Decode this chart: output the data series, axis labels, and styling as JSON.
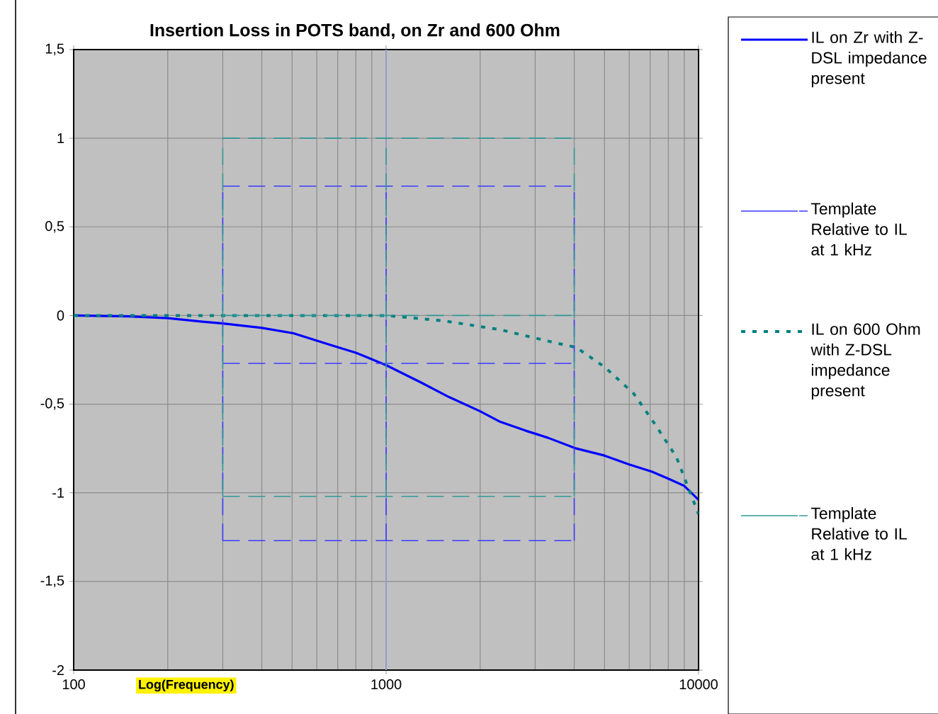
{
  "chart_data": {
    "type": "line",
    "title": "Insertion Loss in POTS band, on Zr and 600 Ohm",
    "xlabel": "Log(Frequency)",
    "log": "x",
    "grid": true,
    "legend": "right",
    "xlim": [
      100,
      10000
    ],
    "xticks": [
      100,
      1000,
      10000
    ],
    "ylim": [
      -2,
      1.5
    ],
    "yticks": [
      -2,
      {
        "value": -1.5,
        "label": "-1,5"
      },
      -1,
      {
        "value": -0.5,
        "label": "-0,5"
      },
      0,
      {
        "value": 0.5,
        "label": "0,5"
      },
      1,
      {
        "value": 1.5,
        "label": "1,5"
      }
    ],
    "ref_lines": [
      {
        "axis": "x",
        "value": 1000,
        "color": "#9999cc"
      }
    ],
    "series": [
      {
        "name": "IL on Zr with Z-DSL impedance present",
        "color": "#0000ff",
        "line_style": "solid",
        "x": [
          100,
          150,
          200,
          258,
          300,
          400,
          505,
          661,
          800,
          1000,
          1300,
          1590,
          2000,
          2320,
          2800,
          3300,
          4060,
          5000,
          6000,
          7080,
          8000,
          8980,
          10000
        ],
        "values": [
          0,
          -0.005,
          -0.015,
          -0.035,
          -0.045,
          -0.07,
          -0.1,
          -0.165,
          -0.21,
          -0.28,
          -0.38,
          -0.46,
          -0.54,
          -0.6,
          -0.65,
          -0.69,
          -0.75,
          -0.79,
          -0.84,
          -0.88,
          -0.92,
          -0.96,
          -1.04
        ]
      },
      {
        "name": "Template Relative to IL at 1 kHz",
        "color": "#3a3aff",
        "line_style": "dashed",
        "x": [
          300,
          4000
        ],
        "values": [
          0.73,
          0.73
        ]
      },
      {
        "name": "IL on 600 Ohm with Z-DSL impedance present",
        "color": "#008080",
        "line_style": "dotted",
        "x": [
          100,
          300,
          1000,
          1530,
          2320,
          3400,
          4060,
          5000,
          6200,
          7300,
          8500,
          9500,
          10000
        ],
        "values": [
          0,
          0,
          0,
          -0.03,
          -0.08,
          -0.15,
          -0.18,
          -0.29,
          -0.44,
          -0.62,
          -0.8,
          -1.02,
          -1.12
        ]
      },
      {
        "name": "Template Relative to IL at 1 kHz",
        "color": "#339999",
        "line_style": "dashed",
        "x": [
          300,
          4000
        ],
        "values": [
          1,
          1
        ]
      },
      {
        "color": "#3a3aff",
        "line_style": "dashed",
        "x": [
          300,
          4000
        ],
        "values": [
          -0.27,
          -0.27
        ]
      },
      {
        "color": "#3a3aff",
        "line_style": "dashed",
        "x": [
          300,
          4000
        ],
        "values": [
          -1.27,
          -1.27
        ]
      },
      {
        "color": "#3a3aff",
        "line_style": "dashed",
        "x": [
          300,
          300
        ],
        "values": [
          -1.27,
          0.73
        ]
      },
      {
        "color": "#3a3aff",
        "line_style": "dashed",
        "x": [
          1000,
          1000
        ],
        "values": [
          -1.27,
          0.73
        ]
      },
      {
        "color": "#3a3aff",
        "line_style": "dashed",
        "x": [
          4000,
          4000
        ],
        "values": [
          -1.27,
          0.73
        ]
      },
      {
        "color": "#339999",
        "line_style": "dashed",
        "x": [
          300,
          4000
        ],
        "values": [
          0,
          0
        ]
      },
      {
        "color": "#339999",
        "line_style": "dashed",
        "x": [
          300,
          4000
        ],
        "values": [
          -1.02,
          -1.02
        ]
      },
      {
        "color": "#339999",
        "line_style": "dashed",
        "x": [
          300,
          300
        ],
        "values": [
          -1.02,
          1
        ]
      },
      {
        "color": "#339999",
        "line_style": "dashed",
        "x": [
          1000,
          1000
        ],
        "values": [
          -1.02,
          1
        ]
      },
      {
        "color": "#339999",
        "line_style": "dashed",
        "x": [
          4000,
          4000
        ],
        "values": [
          -1.02,
          1
        ]
      }
    ]
  }
}
